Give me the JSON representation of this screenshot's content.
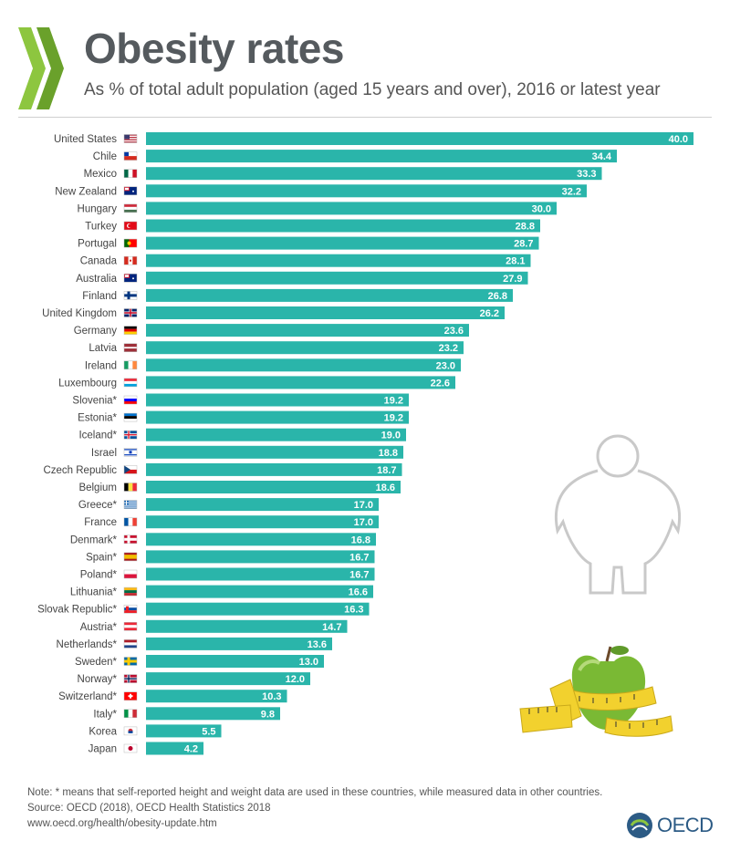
{
  "header": {
    "title": "Obesity rates",
    "subtitle": "As % of total adult population (aged 15 years and over), 2016 or latest year"
  },
  "footer": {
    "note": "Note: * means that self-reported height and weight data are used in these countries, while measured data in other countries.",
    "source": "Source: OECD (2018), OECD Health Statistics 2018",
    "url": "www.oecd.org/health/obesity-update.htm",
    "logo_text": "OECD"
  },
  "colors": {
    "bar": "#2ab5aa",
    "title": "#555a5e",
    "chevron": "#8dc63f"
  },
  "chart_data": {
    "type": "bar",
    "orientation": "horizontal",
    "title": "Obesity rates",
    "subtitle": "As % of total adult population (aged 15 years and over), 2016 or latest year",
    "xlim": [
      0,
      40
    ],
    "grid": false,
    "data_labels": true,
    "categories": [
      "United States",
      "Chile",
      "Mexico",
      "New Zealand",
      "Hungary",
      "Turkey",
      "Portugal",
      "Canada",
      "Australia",
      "Finland",
      "United Kingdom",
      "Germany",
      "Latvia",
      "Ireland",
      "Luxembourg",
      "Slovenia*",
      "Estonia*",
      "Iceland*",
      "Israel",
      "Czech Republic",
      "Belgium",
      "Greece*",
      "France",
      "Denmark*",
      "Spain*",
      "Poland*",
      "Lithuania*",
      "Slovak Republic*",
      "Austria*",
      "Netherlands*",
      "Sweden*",
      "Norway*",
      "Switzerland*",
      "Italy*",
      "Korea",
      "Japan"
    ],
    "values": [
      40.0,
      34.4,
      33.3,
      32.2,
      30.0,
      28.8,
      28.7,
      28.1,
      27.9,
      26.8,
      26.2,
      23.6,
      23.2,
      23.0,
      22.6,
      19.2,
      19.2,
      19.0,
      18.8,
      18.7,
      18.6,
      17.0,
      17.0,
      16.8,
      16.7,
      16.7,
      16.6,
      16.3,
      14.7,
      13.6,
      13.0,
      12.0,
      10.3,
      9.8,
      5.5,
      4.2
    ],
    "value_labels": [
      "40.0",
      "34.4",
      "33.3",
      "32.2",
      "30.0",
      "28.8",
      "28.7",
      "28.1",
      "27.9",
      "26.8",
      "26.2",
      "23.6",
      "23.2",
      "23.0",
      "22.6",
      "19.2",
      "19.2",
      "19.0",
      "18.8",
      "18.7",
      "18.6",
      "17.0",
      "17.0",
      "16.8",
      "16.7",
      "16.7",
      "16.6",
      "16.3",
      "14.7",
      "13.6",
      "13.0",
      "12.0",
      "10.3",
      "9.8",
      "5.5",
      "4.2"
    ],
    "flags": [
      "us-flag",
      "cl-flag",
      "mx-flag",
      "nz-flag",
      "hu-flag",
      "tr-flag",
      "pt-flag",
      "ca-flag",
      "au-flag",
      "fi-flag",
      "gb-flag",
      "de-flag",
      "lv-flag",
      "ie-flag",
      "lu-flag",
      "si-flag",
      "ee-flag",
      "is-flag",
      "il-flag",
      "cz-flag",
      "be-flag",
      "gr-flag",
      "fr-flag",
      "dk-flag",
      "es-flag",
      "pl-flag",
      "lt-flag",
      "sk-flag",
      "at-flag",
      "nl-flag",
      "se-flag",
      "no-flag",
      "ch-flag",
      "it-flag",
      "kr-flag",
      "jp-flag"
    ]
  }
}
